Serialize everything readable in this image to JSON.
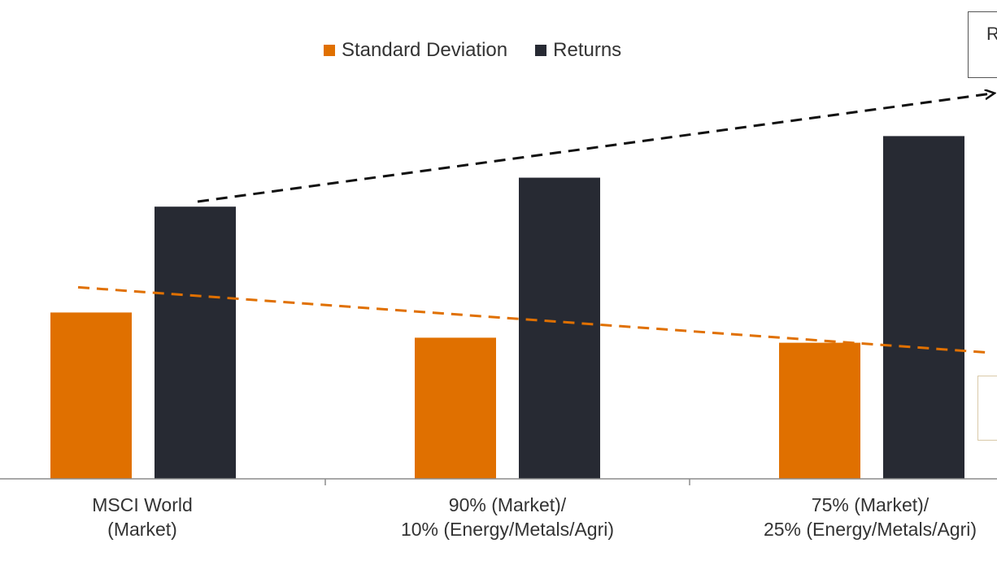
{
  "chart_data": {
    "type": "bar",
    "categories": [
      [
        "MSCI World",
        "(Market)"
      ],
      [
        "90% (Market)/",
        "10% (Energy/Metals/Agri)"
      ],
      [
        "75% (Market)/",
        "25% (Energy/Metals/Agri)"
      ]
    ],
    "series": [
      {
        "name": "Standard Deviation",
        "color": "#e07000",
        "values": [
          6.6,
          5.6,
          5.4
        ]
      },
      {
        "name": "Returns",
        "color": "#272a33",
        "values": [
          10.8,
          11.95,
          13.6
        ]
      }
    ],
    "ylim": [
      0,
      19
    ],
    "grid": false,
    "legend": "top-center",
    "trendlines": [
      {
        "series": "Returns",
        "style": "dashed",
        "color": "#111111",
        "arrow": true,
        "from": 11.0,
        "to": 15.3
      },
      {
        "series": "Standard Deviation",
        "style": "dashed",
        "color": "#e07000",
        "arrow": false,
        "from": 7.6,
        "to": 5.0
      }
    ],
    "callouts": [
      {
        "text": "R",
        "position": "top-right"
      },
      {
        "text": "",
        "position": "bottom-right"
      }
    ]
  }
}
